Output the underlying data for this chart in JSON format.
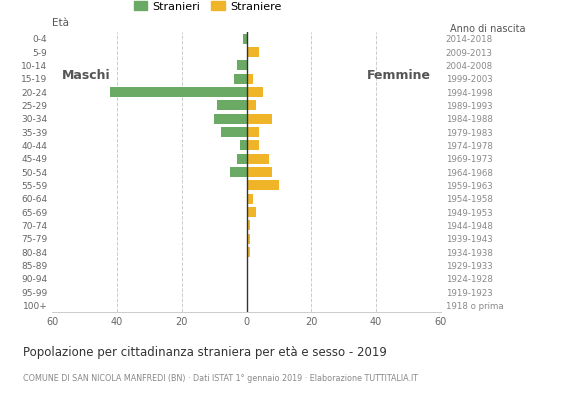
{
  "age_groups": [
    "100+",
    "95-99",
    "90-94",
    "85-89",
    "80-84",
    "75-79",
    "70-74",
    "65-69",
    "60-64",
    "55-59",
    "50-54",
    "45-49",
    "40-44",
    "35-39",
    "30-34",
    "25-29",
    "20-24",
    "15-19",
    "10-14",
    "5-9",
    "0-4"
  ],
  "birth_years": [
    "1918 o prima",
    "1919-1923",
    "1924-1928",
    "1929-1933",
    "1934-1938",
    "1939-1943",
    "1944-1948",
    "1949-1953",
    "1954-1958",
    "1959-1963",
    "1964-1968",
    "1969-1973",
    "1974-1978",
    "1979-1983",
    "1984-1988",
    "1989-1993",
    "1994-1998",
    "1999-2003",
    "2004-2008",
    "2009-2013",
    "2014-2018"
  ],
  "males": [
    0,
    0,
    0,
    0,
    0,
    0,
    0,
    0,
    0,
    0,
    5,
    3,
    2,
    8,
    10,
    9,
    42,
    4,
    3,
    0,
    1
  ],
  "females": [
    0,
    0,
    0,
    0,
    1,
    1,
    1,
    3,
    2,
    10,
    8,
    7,
    4,
    4,
    8,
    3,
    5,
    2,
    0,
    4,
    0
  ],
  "male_color": "#6aaa64",
  "female_color": "#f0b429",
  "title": "Popolazione per cittadinanza straniera per età e sesso - 2019",
  "subtitle": "COMUNE DI SAN NICOLA MANFREDI (BN) · Dati ISTAT 1° gennaio 2019 · Elaborazione TUTTITALIA.IT",
  "legend_male": "Stranieri",
  "legend_female": "Straniere",
  "label_left": "Maschi",
  "label_right": "Femmine",
  "age_label": "Età",
  "birth_label": "Anno di nascita",
  "xlim": 60,
  "background_color": "#ffffff",
  "grid_color": "#cccccc",
  "bar_height": 0.75
}
